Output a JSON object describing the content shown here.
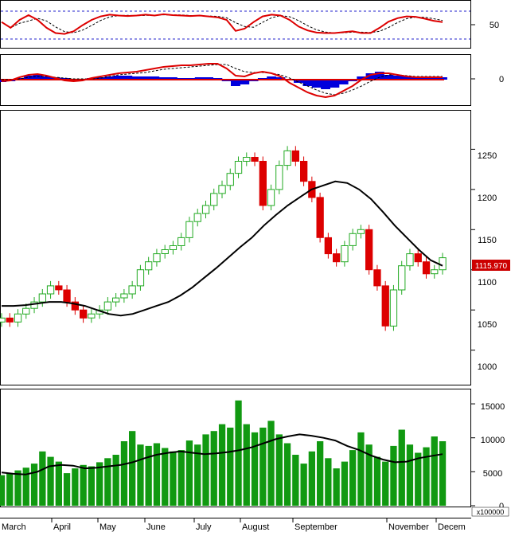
{
  "chart_data": {
    "type": "candlestick",
    "months": [
      "March",
      "April",
      "May",
      "June",
      "July",
      "August",
      "September",
      "November",
      "Decem"
    ],
    "rsi_panel": {
      "type": "line",
      "tick_labels": [
        "50"
      ],
      "guide_levels": [
        70,
        30
      ],
      "ylim": [
        0,
        100
      ],
      "rsi_values": [
        55,
        42,
        60,
        71,
        60,
        42,
        30,
        28,
        34,
        48,
        60,
        68,
        72,
        70,
        69,
        70,
        72,
        70,
        73,
        71,
        70,
        69,
        70,
        68,
        66,
        60,
        35,
        40,
        55,
        68,
        72,
        70,
        60,
        45,
        36,
        31,
        30,
        30,
        32,
        34,
        30,
        30,
        42,
        56,
        64,
        68,
        67,
        63,
        58,
        55
      ]
    },
    "macd_panel": {
      "type": "line",
      "tick_labels": [
        "0"
      ],
      "ylim": [
        -30,
        30
      ],
      "hist_values": [
        -3,
        -2,
        2,
        5,
        6,
        4,
        3,
        2,
        1,
        1,
        2,
        3,
        4,
        5,
        5,
        4,
        4,
        4,
        3,
        3,
        2,
        2,
        3,
        3,
        2,
        -2,
        -8,
        -6,
        -2,
        2,
        4,
        3,
        0,
        -4,
        -8,
        -10,
        -12,
        -10,
        -6,
        -2,
        4,
        8,
        10,
        6,
        5,
        4,
        4,
        3,
        3,
        3
      ],
      "macd_values": [
        -2,
        -1,
        3,
        6,
        7,
        5,
        2,
        -1,
        -2,
        -1,
        2,
        4,
        6,
        8,
        9,
        10,
        12,
        14,
        16,
        17,
        18,
        18,
        19,
        20,
        20,
        14,
        5,
        4,
        8,
        10,
        8,
        4,
        -4,
        -10,
        -16,
        -20,
        -22,
        -20,
        -14,
        -8,
        0,
        6,
        8,
        8,
        6,
        4,
        3,
        3,
        3,
        3
      ],
      "signal_values": [
        0,
        0,
        1,
        3,
        4,
        4,
        3,
        2,
        1,
        1,
        1,
        2,
        4,
        6,
        7,
        8,
        9,
        11,
        13,
        14,
        15,
        16,
        17,
        18,
        19,
        19,
        14,
        10,
        9,
        9,
        8,
        6,
        2,
        -3,
        -8,
        -13,
        -17,
        -19,
        -17,
        -13,
        -8,
        -2,
        3,
        6,
        6,
        5,
        4,
        4,
        4,
        4
      ]
    },
    "price_panel": {
      "type": "candlestick",
      "tick_labels": [
        "1250",
        "1200",
        "1150",
        "1100",
        "1050",
        "1000"
      ],
      "ylim": [
        960,
        1295
      ],
      "last_price_label": "1115.970",
      "closes": [
        1040,
        1035,
        1045,
        1052,
        1060,
        1070,
        1080,
        1075,
        1060,
        1050,
        1040,
        1045,
        1050,
        1060,
        1065,
        1070,
        1080,
        1100,
        1110,
        1120,
        1125,
        1130,
        1140,
        1160,
        1170,
        1180,
        1195,
        1205,
        1220,
        1235,
        1240,
        1235,
        1180,
        1200,
        1230,
        1248,
        1235,
        1210,
        1190,
        1140,
        1120,
        1110,
        1130,
        1145,
        1150,
        1100,
        1080,
        1030,
        1075,
        1105,
        1120,
        1110,
        1095,
        1100,
        1115
      ],
      "ma_values": [
        1055,
        1055,
        1056,
        1058,
        1060,
        1060,
        1058,
        1055,
        1050,
        1045,
        1043,
        1045,
        1050,
        1055,
        1060,
        1068,
        1078,
        1090,
        1102,
        1115,
        1128,
        1140,
        1155,
        1168,
        1180,
        1190,
        1200,
        1205,
        1210,
        1208,
        1200,
        1188,
        1172,
        1155,
        1140,
        1125,
        1112,
        1105
      ]
    },
    "volume_panel": {
      "type": "bar",
      "tick_labels": [
        "15000",
        "10000",
        "5000",
        "0"
      ],
      "unit_label": "x100000",
      "ylim": [
        0,
        17000
      ],
      "values": [
        4500,
        4800,
        5200,
        5600,
        6200,
        8000,
        7200,
        6500,
        4800,
        5500,
        6000,
        5800,
        6400,
        7000,
        7500,
        9500,
        11000,
        9000,
        8800,
        9200,
        8500,
        8000,
        8200,
        9600,
        9000,
        10500,
        11000,
        12000,
        11500,
        15500,
        12000,
        10800,
        11500,
        12500,
        10500,
        9200,
        7500,
        6200,
        8000,
        9500,
        7000,
        5500,
        6500,
        8200,
        10800,
        9000,
        7200,
        6500,
        8800,
        11200,
        9000,
        7800,
        8600,
        10200,
        9500
      ],
      "ma_values": [
        4900,
        4700,
        4600,
        5000,
        5800,
        6000,
        5900,
        5500,
        5600,
        5800,
        6000,
        6400,
        7000,
        7500,
        7800,
        8000,
        7800,
        7600,
        7700,
        7900,
        8200,
        8600,
        9200,
        9800,
        10200,
        10500,
        10300,
        10000,
        9600,
        8800,
        8200,
        7400,
        6800,
        6400,
        6500,
        7000,
        7300,
        7600
      ]
    }
  }
}
